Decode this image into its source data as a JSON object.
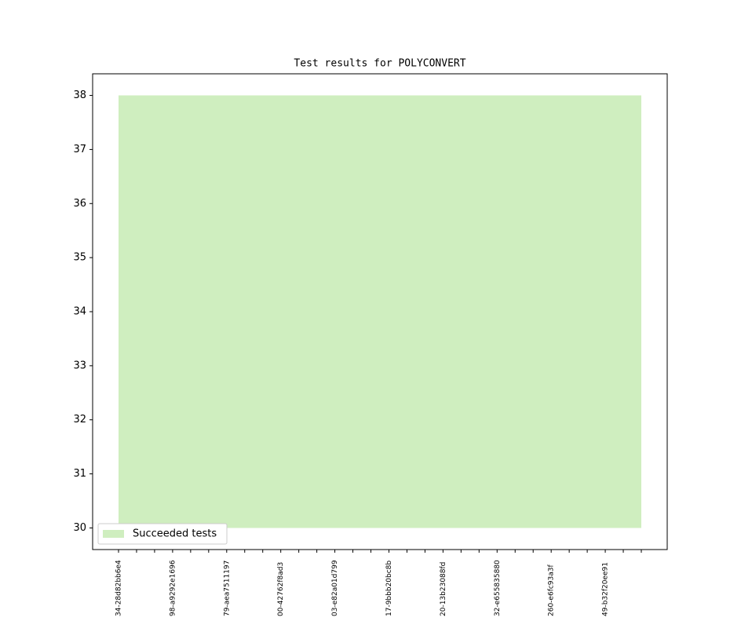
{
  "chart_data": {
    "type": "area",
    "title": "Test results for POLYCONVERT",
    "categories": [
      "34-28d82bb6e4",
      null,
      null,
      "98-a9292e1696",
      null,
      null,
      "79-aea7511197",
      null,
      null,
      "00-42762f8ad3",
      null,
      null,
      "03-e82a01d799",
      null,
      null,
      "17-9bbb20bc8b",
      null,
      null,
      "20-13b23088fd",
      null,
      null,
      "32-e655835880",
      null,
      null,
      "260-e6fc93a3f",
      null,
      null,
      "49-b32f20ee91",
      null,
      null
    ],
    "series": [
      {
        "name": "Succeeded tests",
        "color": "#cfeebf",
        "base": [
          30,
          30,
          30,
          30,
          30,
          30,
          30,
          30,
          30,
          30,
          30,
          30,
          30,
          30,
          30,
          30,
          30,
          30,
          30,
          30,
          30,
          30,
          30,
          30,
          30,
          30,
          30,
          30,
          30,
          30
        ],
        "values": [
          38,
          38,
          38,
          38,
          38,
          38,
          38,
          38,
          38,
          38,
          38,
          38,
          38,
          38,
          38,
          38,
          38,
          38,
          38,
          38,
          38,
          38,
          38,
          38,
          38,
          38,
          38,
          38,
          38,
          38
        ]
      }
    ],
    "ylim": [
      29.6,
      38.4
    ],
    "yticks": [
      30,
      31,
      32,
      33,
      34,
      35,
      36,
      37,
      38
    ],
    "legend": "lower left",
    "grid": false
  }
}
